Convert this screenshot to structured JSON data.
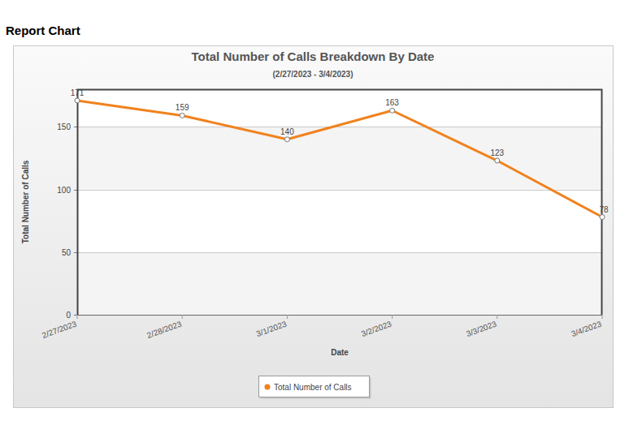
{
  "page_title": "Report Chart",
  "chart_data": {
    "type": "line",
    "title": "Total Number of Calls Breakdown By Date",
    "subtitle": "(2/27/2023 - 3/4/2023)",
    "x_label": "Date",
    "y_label": "Total Number of Calls",
    "categories": [
      "2/27/2023",
      "2/28/2023",
      "3/1/2023",
      "3/2/2023",
      "3/3/2023",
      "3/4/2023"
    ],
    "series": [
      {
        "name": "Total Number of Calls",
        "color": "#f0821e",
        "values": [
          171,
          159,
          140,
          163,
          123,
          78
        ]
      }
    ],
    "ylim": [
      0,
      180
    ],
    "yticks": [
      0,
      50,
      100,
      150
    ],
    "grid": true,
    "legend": "bottom",
    "data_labels": true,
    "marker": "circle"
  }
}
